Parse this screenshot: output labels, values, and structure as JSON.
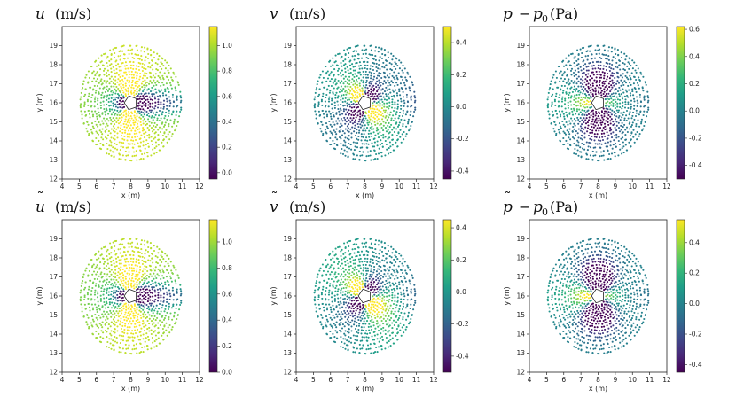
{
  "chart_data": [
    {
      "type": "scatter",
      "id": "u",
      "title": {
        "symbol": "u",
        "tilde": false,
        "minus": "",
        "base": "",
        "sub": "",
        "unit": "(m/s)"
      },
      "field": "u",
      "xlabel": "x (m)",
      "ylabel": "y (m)",
      "xlim": [
        4,
        12
      ],
      "ylim": [
        12,
        20
      ],
      "xticks": [
        4,
        5,
        6,
        7,
        8,
        9,
        10,
        11,
        12
      ],
      "yticks": [
        12,
        13,
        14,
        15,
        16,
        17,
        18,
        19
      ],
      "colorbar": {
        "min": -0.05,
        "max": 1.15,
        "ticks": [
          0.0,
          0.2,
          0.4,
          0.6,
          0.8,
          1.0
        ],
        "tick_labels": [
          "0.0",
          "0.2",
          "0.4",
          "0.6",
          "0.8",
          "1.0"
        ]
      }
    },
    {
      "type": "scatter",
      "id": "v",
      "title": {
        "symbol": "v",
        "tilde": false,
        "minus": "",
        "base": "",
        "sub": "",
        "unit": "(m/s)"
      },
      "field": "v",
      "xlabel": "x (m)",
      "ylabel": "y (m)",
      "xlim": [
        4,
        12
      ],
      "ylim": [
        12,
        20
      ],
      "xticks": [
        4,
        5,
        6,
        7,
        8,
        9,
        10,
        11,
        12
      ],
      "yticks": [
        12,
        13,
        14,
        15,
        16,
        17,
        18,
        19
      ],
      "colorbar": {
        "min": -0.45,
        "max": 0.5,
        "ticks": [
          -0.4,
          -0.2,
          0.0,
          0.2,
          0.4
        ],
        "tick_labels": [
          "-0.4",
          "-0.2",
          "0.0",
          "0.2",
          "0.4"
        ]
      }
    },
    {
      "type": "scatter",
      "id": "p",
      "title": {
        "symbol": "p",
        "tilde": false,
        "minus": "−",
        "base": "p",
        "sub": "0",
        "unit": "(Pa)"
      },
      "field": "p",
      "xlabel": "x (m)",
      "ylabel": "y (m)",
      "xlim": [
        4,
        12
      ],
      "ylim": [
        12,
        20
      ],
      "xticks": [
        4,
        5,
        6,
        7,
        8,
        9,
        10,
        11,
        12
      ],
      "yticks": [
        12,
        13,
        14,
        15,
        16,
        17,
        18,
        19
      ],
      "colorbar": {
        "min": -0.5,
        "max": 0.62,
        "ticks": [
          -0.4,
          -0.2,
          0.0,
          0.2,
          0.4,
          0.6
        ],
        "tick_labels": [
          "-0.4",
          "-0.2",
          "0.0",
          "0.2",
          "0.4",
          "0.6"
        ]
      }
    },
    {
      "type": "scatter",
      "id": "u_tilde",
      "title": {
        "symbol": "u",
        "tilde": true,
        "minus": "",
        "base": "",
        "sub": "",
        "unit": "(m/s)"
      },
      "field": "u",
      "xlabel": "x (m)",
      "ylabel": "y (m)",
      "xlim": [
        4,
        12
      ],
      "ylim": [
        12,
        20
      ],
      "xticks": [
        4,
        5,
        6,
        7,
        8,
        9,
        10,
        11,
        12
      ],
      "yticks": [
        12,
        13,
        14,
        15,
        16,
        17,
        18,
        19
      ],
      "colorbar": {
        "min": 0.0,
        "max": 1.17,
        "ticks": [
          0.0,
          0.2,
          0.4,
          0.6,
          0.8,
          1.0
        ],
        "tick_labels": [
          "0.0",
          "0.2",
          "0.4",
          "0.6",
          "0.8",
          "1.0"
        ]
      }
    },
    {
      "type": "scatter",
      "id": "v_tilde",
      "title": {
        "symbol": "v",
        "tilde": true,
        "minus": "",
        "base": "",
        "sub": "",
        "unit": "(m/s)"
      },
      "field": "v",
      "xlabel": "x (m)",
      "ylabel": "y (m)",
      "xlim": [
        4,
        12
      ],
      "ylim": [
        12,
        20
      ],
      "xticks": [
        4,
        5,
        6,
        7,
        8,
        9,
        10,
        11,
        12
      ],
      "yticks": [
        12,
        13,
        14,
        15,
        16,
        17,
        18,
        19
      ],
      "colorbar": {
        "min": -0.5,
        "max": 0.45,
        "ticks": [
          -0.4,
          -0.2,
          0.0,
          0.2,
          0.4
        ],
        "tick_labels": [
          "-0.4",
          "-0.2",
          "0.0",
          "0.2",
          "0.4"
        ]
      }
    },
    {
      "type": "scatter",
      "id": "p_tilde",
      "title": {
        "symbol": "p",
        "tilde": true,
        "minus": "−",
        "base": "p",
        "sub": "0",
        "unit": "(Pa)"
      },
      "field": "p",
      "xlabel": "x (m)",
      "ylabel": "y (m)",
      "xlim": [
        4,
        12
      ],
      "ylim": [
        12,
        20
      ],
      "xticks": [
        4,
        5,
        6,
        7,
        8,
        9,
        10,
        11,
        12
      ],
      "yticks": [
        12,
        13,
        14,
        15,
        16,
        17,
        18,
        19
      ],
      "colorbar": {
        "min": -0.45,
        "max": 0.55,
        "ticks": [
          -0.4,
          -0.2,
          0.0,
          0.2,
          0.4
        ],
        "tick_labels": [
          "-0.4",
          "-0.2",
          "0.0",
          "0.2",
          "0.4"
        ]
      }
    }
  ],
  "domain": {
    "center": [
      8.0,
      16.0
    ],
    "outer_radius": 3.1,
    "cylinder_radius": 0.38
  },
  "colormap": {
    "name": "viridis",
    "stops": [
      "#440154",
      "#482878",
      "#3e4989",
      "#31688e",
      "#26828e",
      "#1f9e89",
      "#35b779",
      "#6ece58",
      "#b5de2b",
      "#fde725"
    ]
  }
}
